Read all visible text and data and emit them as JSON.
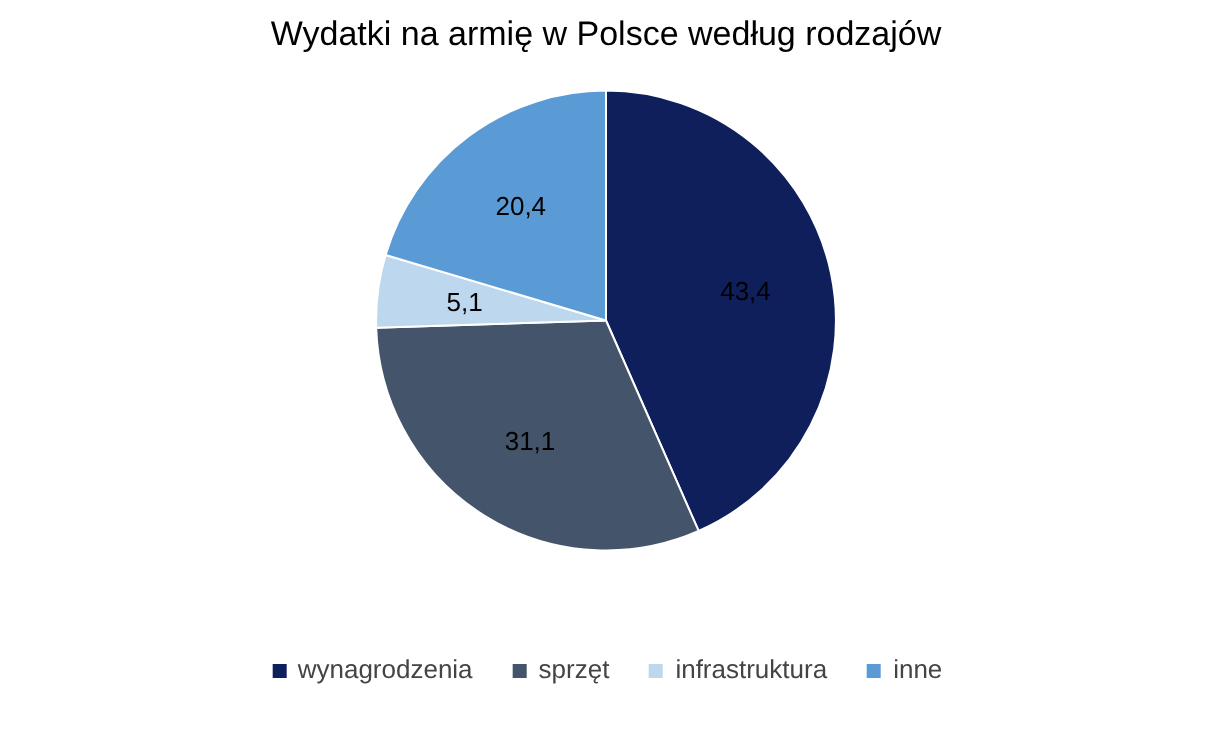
{
  "chart_data": {
    "type": "pie",
    "title": "Wydatki na armię w Polsce według rodzajów",
    "categories": [
      "wynagrodzenia",
      "sprzęt",
      "infrastruktura",
      "inne"
    ],
    "values": [
      43.4,
      31.1,
      5.1,
      20.4
    ],
    "colors": [
      "#0f1f5c",
      "#44546a",
      "#bdd7ee",
      "#5b9bd5"
    ],
    "value_labels": [
      "43,4",
      "31,1",
      "5,1",
      "20,4"
    ],
    "legend": "bottom"
  }
}
